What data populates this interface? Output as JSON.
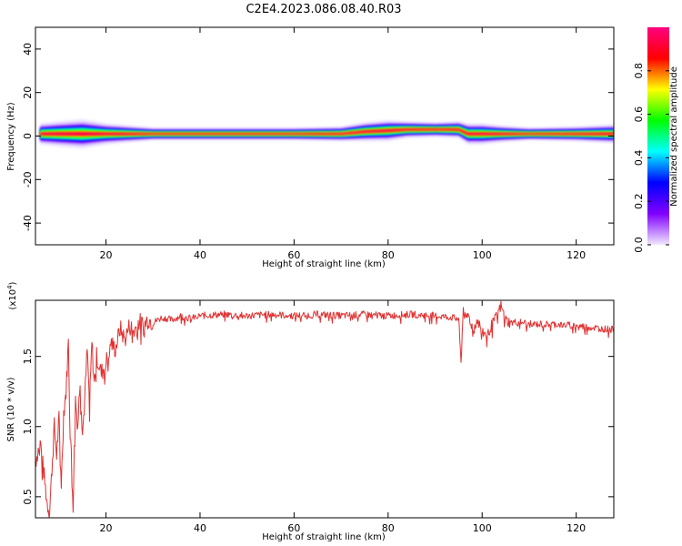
{
  "title": "C2E4.2023.086.08.40.R03",
  "chart_data": [
    {
      "type": "heatmap",
      "xlabel": "Height of straight line (km)",
      "ylabel": "Frequency (Hz)",
      "xlim": [
        5,
        128
      ],
      "ylim": [
        -50,
        50
      ],
      "xticks": [
        20,
        40,
        60,
        80,
        100,
        120
      ],
      "yticks": [
        -40,
        -20,
        0,
        20,
        40
      ],
      "colorbar": {
        "label": "Normalized spectral amplitude",
        "range": [
          0,
          1
        ],
        "ticks": [
          "0.0",
          "0.2",
          "0.4",
          "0.6",
          "0.8"
        ],
        "colors": [
          "#f0e8ff",
          "#8000ff",
          "#0000ff",
          "#00ffff",
          "#00ff00",
          "#ffff00",
          "#ff0000",
          "#ff0080"
        ]
      },
      "ridge": {
        "x": [
          6,
          10,
          15,
          20,
          25,
          30,
          40,
          50,
          60,
          70,
          75,
          80,
          84,
          90,
          95,
          97,
          100,
          104,
          110,
          120,
          128
        ],
        "center": [
          1,
          1,
          1,
          1,
          1,
          1,
          1,
          1,
          1,
          1,
          2,
          2.5,
          3,
          3,
          3,
          1,
          1,
          1,
          1,
          1,
          1
        ],
        "width": [
          5,
          6,
          7,
          5,
          4,
          3,
          3,
          3,
          3,
          3.5,
          4.5,
          5,
          4,
          3.5,
          4,
          5,
          5,
          4,
          3,
          3.5,
          4.5
        ]
      }
    },
    {
      "type": "line",
      "xlabel": "Height of straight line (km)",
      "ylabel": "SNR (10 * v/v)",
      "scale_label": "(x10",
      "scale_exp": "4",
      "xlim": [
        5,
        128
      ],
      "ylim": [
        0.35,
        1.9
      ],
      "xticks": [
        20,
        40,
        60,
        80,
        100,
        120
      ],
      "yticks": [
        0.5,
        1.0,
        1.5
      ],
      "ytick_labels": [
        "0.5",
        "1.0",
        "1.5"
      ],
      "series": [
        {
          "color": "#e03030",
          "x": [
            5,
            6,
            7,
            7.5,
            8,
            8.5,
            9,
            9.5,
            10,
            10.5,
            11,
            11.5,
            12,
            12.5,
            13,
            13.5,
            14,
            14.5,
            15,
            15.5,
            16,
            16.5,
            17,
            17.5,
            18,
            19,
            20,
            21,
            22,
            23,
            24,
            25,
            26,
            27,
            28,
            29,
            30,
            32,
            34,
            36,
            38,
            40,
            45,
            50,
            55,
            60,
            65,
            70,
            75,
            80,
            85,
            90,
            93,
            95,
            95.5,
            96,
            96.5,
            97,
            98,
            99,
            100,
            101,
            102,
            103,
            104,
            105,
            106,
            108,
            110,
            115,
            120,
            125,
            128
          ],
          "y": [
            0.75,
            0.9,
            0.6,
            0.45,
            0.4,
            0.7,
            1.0,
            0.8,
            1.05,
            0.6,
            1.1,
            1.25,
            1.6,
            0.9,
            0.45,
            1.2,
            1.0,
            1.35,
            0.95,
            1.2,
            1.55,
            1.15,
            1.6,
            1.3,
            1.5,
            1.38,
            1.45,
            1.6,
            1.55,
            1.7,
            1.62,
            1.72,
            1.68,
            1.75,
            1.72,
            1.77,
            1.74,
            1.78,
            1.76,
            1.79,
            1.77,
            1.79,
            1.8,
            1.79,
            1.8,
            1.79,
            1.8,
            1.79,
            1.8,
            1.79,
            1.8,
            1.79,
            1.78,
            1.77,
            1.45,
            1.85,
            1.75,
            1.8,
            1.7,
            1.76,
            1.68,
            1.65,
            1.72,
            1.78,
            1.86,
            1.76,
            1.74,
            1.75,
            1.73,
            1.73,
            1.72,
            1.7,
            1.69
          ]
        }
      ]
    }
  ]
}
